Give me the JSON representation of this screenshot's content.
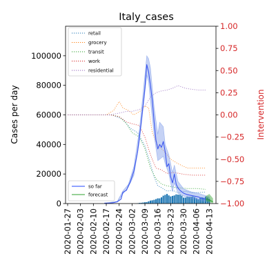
{
  "chart_data": {
    "type": "line",
    "title": "Italy_cases",
    "ylabel": "Cases per day",
    "ylabel_right": "Intervention",
    "ylim": [
      0,
      120000
    ],
    "ylim_right": [
      -1.0,
      1.0
    ],
    "yticks": [
      "0",
      "20000",
      "40000",
      "60000",
      "80000",
      "100000"
    ],
    "yticks_right": [
      "−1.00",
      "−0.75",
      "−0.50",
      "−0.25",
      "0.00",
      "0.25",
      "0.50",
      "0.75",
      "1.00"
    ],
    "xticks": [
      "2020-01-27",
      "2020-02-03",
      "2020-02-10",
      "2020-02-17",
      "2020-02-24",
      "2020-03-02",
      "2020-03-09",
      "2020-03-16",
      "2020-03-23",
      "2020-03-30",
      "2020-04-06",
      "2020-04-13"
    ],
    "x_start": "2020-01-27",
    "x_end": "2020-04-15",
    "grid": false,
    "legend_upper": {
      "placement": "top-left",
      "entries": [
        {
          "label": "retail",
          "color": "#1f77b4"
        },
        {
          "label": "grocery",
          "color": "#ff7f0e"
        },
        {
          "label": "transit",
          "color": "#2ca02c"
        },
        {
          "label": "work",
          "color": "#d62728"
        },
        {
          "label": "residential",
          "color": "#9467bd"
        }
      ]
    },
    "legend_lower": {
      "placement": "bottom-left",
      "entries": [
        {
          "label": "so far",
          "color": "#1f45ff"
        },
        {
          "label": "forecast",
          "color": "#2ca02c"
        }
      ]
    },
    "so_far": {
      "color": "#3a55ee",
      "band_color": "#6d8fe6",
      "points": [
        [
          "2020-02-16",
          300
        ],
        [
          "2020-02-19",
          350
        ],
        [
          "2020-02-21",
          600
        ],
        [
          "2020-02-23",
          1200
        ],
        [
          "2020-02-25",
          3000
        ],
        [
          "2020-02-26",
          7500
        ],
        [
          "2020-02-28",
          9000
        ],
        [
          "2020-02-29",
          12000
        ],
        [
          "2020-03-01",
          14500
        ],
        [
          "2020-03-03",
          22000
        ],
        [
          "2020-03-05",
          35000
        ],
        [
          "2020-03-07",
          55000
        ],
        [
          "2020-03-09",
          78000
        ],
        [
          "2020-03-10",
          94000
        ],
        [
          "2020-03-11",
          89000
        ],
        [
          "2020-03-12",
          80000
        ],
        [
          "2020-03-13",
          70000
        ],
        [
          "2020-03-14",
          55000
        ],
        [
          "2020-03-15",
          43000
        ],
        [
          "2020-03-16",
          37000
        ],
        [
          "2020-03-17",
          40000
        ],
        [
          "2020-03-18",
          38000
        ],
        [
          "2020-03-19",
          42000
        ],
        [
          "2020-03-20",
          35000
        ],
        [
          "2020-03-21",
          25000
        ],
        [
          "2020-03-22",
          27000
        ],
        [
          "2020-03-23",
          18000
        ],
        [
          "2020-03-24",
          14000
        ],
        [
          "2020-03-25",
          20000
        ],
        [
          "2020-03-26",
          13000
        ],
        [
          "2020-03-27",
          10500
        ],
        [
          "2020-03-28",
          9000
        ],
        [
          "2020-03-30",
          7000
        ],
        [
          "2020-04-01",
          6000
        ],
        [
          "2020-04-03",
          5500
        ],
        [
          "2020-04-05",
          5000
        ],
        [
          "2020-04-07",
          4500
        ],
        [
          "2020-04-09",
          3500
        ],
        [
          "2020-04-11",
          3000
        ],
        [
          "2020-04-13",
          2500
        ]
      ],
      "band_upper": [
        [
          "2020-02-16",
          350
        ],
        [
          "2020-02-23",
          1500
        ],
        [
          "2020-02-26",
          8500
        ],
        [
          "2020-02-29",
          13000
        ],
        [
          "2020-03-03",
          25000
        ],
        [
          "2020-03-06",
          50000
        ],
        [
          "2020-03-08",
          75000
        ],
        [
          "2020-03-10",
          100000
        ],
        [
          "2020-03-11",
          98000
        ],
        [
          "2020-03-12",
          92000
        ],
        [
          "2020-03-14",
          65000
        ],
        [
          "2020-03-16",
          47000
        ],
        [
          "2020-03-17",
          55000
        ],
        [
          "2020-03-19",
          52000
        ],
        [
          "2020-03-20",
          40000
        ],
        [
          "2020-03-22",
          33000
        ],
        [
          "2020-03-24",
          21000
        ],
        [
          "2020-03-25",
          26000
        ],
        [
          "2020-03-27",
          15000
        ],
        [
          "2020-03-30",
          10000
        ],
        [
          "2020-04-03",
          8000
        ],
        [
          "2020-04-07",
          7000
        ],
        [
          "2020-04-13",
          4500
        ]
      ],
      "band_lower": [
        [
          "2020-04-13",
          1200
        ],
        [
          "2020-04-07",
          2500
        ],
        [
          "2020-04-03",
          3500
        ],
        [
          "2020-03-30",
          5000
        ],
        [
          "2020-03-27",
          7000
        ],
        [
          "2020-03-25",
          14000
        ],
        [
          "2020-03-24",
          8000
        ],
        [
          "2020-03-22",
          20000
        ],
        [
          "2020-03-20",
          27000
        ],
        [
          "2020-03-19",
          32000
        ],
        [
          "2020-03-17",
          30000
        ],
        [
          "2020-03-16",
          29000
        ],
        [
          "2020-03-14",
          46000
        ],
        [
          "2020-03-12",
          70000
        ],
        [
          "2020-03-11",
          82000
        ],
        [
          "2020-03-10",
          87000
        ],
        [
          "2020-03-08",
          64000
        ],
        [
          "2020-03-06",
          42000
        ],
        [
          "2020-03-03",
          19000
        ],
        [
          "2020-02-29",
          11000
        ],
        [
          "2020-02-26",
          6500
        ],
        [
          "2020-02-23",
          1000
        ],
        [
          "2020-02-16",
          250
        ]
      ]
    },
    "forecast": {
      "color": "#2ca02c",
      "points": [
        [
          "2020-04-11",
          3200
        ],
        [
          "2020-04-13",
          2300
        ],
        [
          "2020-04-15",
          1200
        ]
      ],
      "band_upper": [
        [
          "2020-04-11",
          5000
        ],
        [
          "2020-04-13",
          6500
        ],
        [
          "2020-04-15",
          3500
        ]
      ],
      "band_lower": [
        [
          "2020-04-15",
          200
        ],
        [
          "2020-04-13",
          800
        ],
        [
          "2020-04-11",
          1500
        ]
      ]
    },
    "bars": {
      "color": "#1f77b4",
      "values": [
        [
          "2020-03-05",
          250
        ],
        [
          "2020-03-06",
          400
        ],
        [
          "2020-03-07",
          500
        ],
        [
          "2020-03-08",
          700
        ],
        [
          "2020-03-09",
          900
        ],
        [
          "2020-03-10",
          1000
        ],
        [
          "2020-03-11",
          1500
        ],
        [
          "2020-03-12",
          2000
        ],
        [
          "2020-03-13",
          2200
        ],
        [
          "2020-03-14",
          2500
        ],
        [
          "2020-03-15",
          3000
        ],
        [
          "2020-03-16",
          3500
        ],
        [
          "2020-03-17",
          3500
        ],
        [
          "2020-03-18",
          4200
        ],
        [
          "2020-03-19",
          5300
        ],
        [
          "2020-03-20",
          5900
        ],
        [
          "2020-03-21",
          6500
        ],
        [
          "2020-03-22",
          5500
        ],
        [
          "2020-03-23",
          4800
        ],
        [
          "2020-03-24",
          5200
        ],
        [
          "2020-03-25",
          5500
        ],
        [
          "2020-03-26",
          6200
        ],
        [
          "2020-03-27",
          6000
        ],
        [
          "2020-03-28",
          6000
        ],
        [
          "2020-03-29",
          5300
        ],
        [
          "2020-03-30",
          4000
        ],
        [
          "2020-03-31",
          4000
        ],
        [
          "2020-04-01",
          4800
        ],
        [
          "2020-04-02",
          4600
        ],
        [
          "2020-04-03",
          4600
        ],
        [
          "2020-04-04",
          4800
        ],
        [
          "2020-04-05",
          4300
        ],
        [
          "2020-04-06",
          3600
        ],
        [
          "2020-04-07",
          3000
        ],
        [
          "2020-04-08",
          3800
        ],
        [
          "2020-04-09",
          4200
        ],
        [
          "2020-04-10",
          3900
        ],
        [
          "2020-04-11",
          4700
        ],
        [
          "2020-04-12",
          4100
        ],
        [
          "2020-04-13",
          3200
        ]
      ]
    },
    "interventions": [
      {
        "name": "retail",
        "color": "#1f77b4",
        "points": [
          [
            "2020-01-27",
            0.0
          ],
          [
            "2020-02-20",
            0.0
          ],
          [
            "2020-02-26",
            -0.05
          ],
          [
            "2020-03-01",
            -0.15
          ],
          [
            "2020-03-05",
            -0.2
          ],
          [
            "2020-03-09",
            -0.35
          ],
          [
            "2020-03-12",
            -0.55
          ],
          [
            "2020-03-14",
            -0.7
          ],
          [
            "2020-03-16",
            -0.8
          ],
          [
            "2020-03-18",
            -0.82
          ],
          [
            "2020-03-21",
            -0.86
          ],
          [
            "2020-03-24",
            -0.85
          ],
          [
            "2020-03-27",
            -0.88
          ],
          [
            "2020-03-31",
            -0.86
          ],
          [
            "2020-04-04",
            -0.88
          ],
          [
            "2020-04-11",
            -0.87
          ]
        ]
      },
      {
        "name": "grocery",
        "color": "#ff7f0e",
        "points": [
          [
            "2020-01-27",
            0.0
          ],
          [
            "2020-02-17",
            0.0
          ],
          [
            "2020-02-21",
            0.05
          ],
          [
            "2020-02-24",
            0.15
          ],
          [
            "2020-02-26",
            0.08
          ],
          [
            "2020-02-29",
            0.05
          ],
          [
            "2020-03-03",
            0.0
          ],
          [
            "2020-03-07",
            0.05
          ],
          [
            "2020-03-09",
            0.1
          ],
          [
            "2020-03-11",
            0.08
          ],
          [
            "2020-03-13",
            -0.2
          ],
          [
            "2020-03-16",
            -0.35
          ],
          [
            "2020-03-19",
            -0.4
          ],
          [
            "2020-03-23",
            -0.5
          ],
          [
            "2020-03-27",
            -0.55
          ],
          [
            "2020-04-01",
            -0.6
          ],
          [
            "2020-04-05",
            -0.6
          ],
          [
            "2020-04-11",
            -0.6
          ]
        ]
      },
      {
        "name": "transit",
        "color": "#2ca02c",
        "points": [
          [
            "2020-01-27",
            0.0
          ],
          [
            "2020-02-20",
            0.0
          ],
          [
            "2020-02-24",
            -0.02
          ],
          [
            "2020-02-28",
            -0.1
          ],
          [
            "2020-03-02",
            -0.2
          ],
          [
            "2020-03-06",
            -0.25
          ],
          [
            "2020-03-09",
            -0.38
          ],
          [
            "2020-03-12",
            -0.6
          ],
          [
            "2020-03-15",
            -0.72
          ],
          [
            "2020-03-18",
            -0.78
          ],
          [
            "2020-03-21",
            -0.8
          ],
          [
            "2020-03-26",
            -0.82
          ],
          [
            "2020-04-01",
            -0.83
          ],
          [
            "2020-04-06",
            -0.83
          ],
          [
            "2020-04-11",
            -0.84
          ]
        ]
      },
      {
        "name": "work",
        "color": "#d62728",
        "points": [
          [
            "2020-01-27",
            0.0
          ],
          [
            "2020-02-19",
            0.0
          ],
          [
            "2020-02-24",
            -0.02
          ],
          [
            "2020-02-28",
            -0.08
          ],
          [
            "2020-03-02",
            -0.1
          ],
          [
            "2020-03-06",
            -0.12
          ],
          [
            "2020-03-09",
            -0.25
          ],
          [
            "2020-03-12",
            -0.45
          ],
          [
            "2020-03-15",
            -0.6
          ],
          [
            "2020-03-18",
            -0.62
          ],
          [
            "2020-03-21",
            -0.66
          ],
          [
            "2020-03-25",
            -0.65
          ],
          [
            "2020-03-30",
            -0.67
          ],
          [
            "2020-04-04",
            -0.68
          ],
          [
            "2020-04-11",
            -0.68
          ]
        ]
      },
      {
        "name": "residential",
        "color": "#9467bd",
        "points": [
          [
            "2020-01-27",
            0.0
          ],
          [
            "2020-02-19",
            0.0
          ],
          [
            "2020-02-24",
            0.02
          ],
          [
            "2020-02-28",
            0.04
          ],
          [
            "2020-03-02",
            0.04
          ],
          [
            "2020-03-06",
            0.06
          ],
          [
            "2020-03-09",
            0.1
          ],
          [
            "2020-03-12",
            0.2
          ],
          [
            "2020-03-15",
            0.25
          ],
          [
            "2020-03-18",
            0.27
          ],
          [
            "2020-03-21",
            0.28
          ],
          [
            "2020-03-24",
            0.3
          ],
          [
            "2020-03-27",
            0.33
          ],
          [
            "2020-03-31",
            0.3
          ],
          [
            "2020-04-03",
            0.29
          ],
          [
            "2020-04-07",
            0.28
          ],
          [
            "2020-04-11",
            0.28
          ]
        ]
      }
    ]
  }
}
